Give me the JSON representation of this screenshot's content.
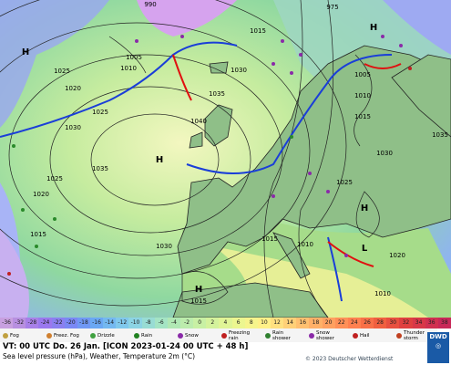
{
  "map": {
    "pressure_labels": [
      "1025",
      "1020",
      "1025",
      "1030",
      "1035",
      "1025",
      "1020",
      "1015",
      "1030",
      "1040",
      "1035",
      "1030",
      "1005",
      "1010",
      "1015",
      "1005",
      "1010",
      "1015",
      "1025",
      "1015",
      "1010",
      "1020",
      "1015",
      "1010",
      "1030",
      "1035",
      "990",
      "975"
    ],
    "centers": [
      "H",
      "H",
      "H",
      "H",
      "H",
      "L"
    ]
  },
  "legend": {
    "temperature_scale": [
      "-36",
      "-32",
      "-28",
      "-24",
      "-22",
      "-20",
      "-18",
      "-16",
      "-14",
      "-12",
      "-10",
      "-8",
      "-6",
      "-4",
      "-2",
      "0",
      "2",
      "4",
      "6",
      "8",
      "10",
      "12",
      "14",
      "16",
      "18",
      "20",
      "22",
      "24",
      "26",
      "28",
      "30",
      "32",
      "34",
      "36",
      "38"
    ],
    "weather": [
      "Fog",
      "Freez. Fog",
      "Drizzle",
      "Rain",
      "Snow",
      "Freezing rain",
      "Rain shower",
      "Snow shower",
      "Hail",
      "Thunder storm"
    ]
  },
  "footer": {
    "line1": "VT: 00 UTC Do.  26 Jan. [ICON 2023-01-24  00 UTC + 48 h]",
    "line2": "Sea level pressure (hPa), Weather, Temperature 2m (°C)",
    "copyright": "© 2023 Deutscher Wetterdienst",
    "logo": "DWD"
  }
}
